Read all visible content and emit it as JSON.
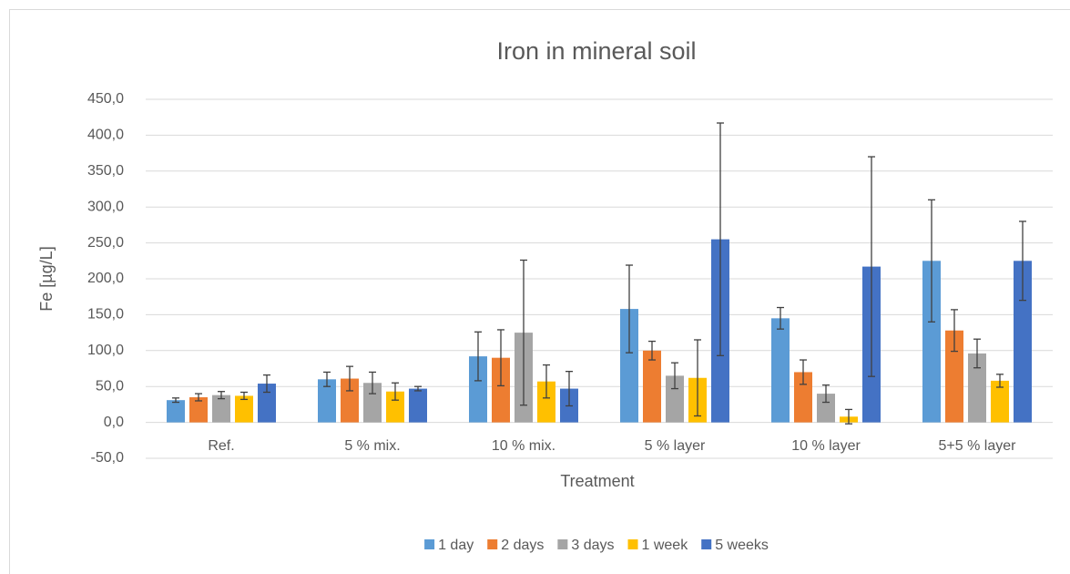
{
  "chart_data": {
    "type": "bar",
    "title": "Iron in mineral soil",
    "x_label": "Treatment",
    "y_label": "Fe [µg/L]",
    "categories": [
      "Ref.",
      "5 % mix.",
      "10 % mix.",
      "5 % layer",
      "10 % layer",
      "5+5 % layer"
    ],
    "series": [
      {
        "name": "1 day",
        "color": "#5b9bd5",
        "values": [
          31,
          60,
          92,
          158,
          145,
          225
        ],
        "errors": [
          3,
          10,
          34,
          61,
          15,
          85
        ]
      },
      {
        "name": "2 days",
        "color": "#ed7d31",
        "values": [
          35,
          61,
          90,
          100,
          70,
          128
        ],
        "errors": [
          5,
          17,
          39,
          13,
          17,
          29
        ]
      },
      {
        "name": "3 days",
        "color": "#a5a5a5",
        "values": [
          38,
          55,
          125,
          65,
          40,
          96
        ],
        "errors": [
          5,
          15,
          101,
          18,
          12,
          20
        ]
      },
      {
        "name": "1 week",
        "color": "#ffc000",
        "values": [
          37,
          43,
          57,
          62,
          8,
          58
        ],
        "errors": [
          5,
          12,
          23,
          53,
          10,
          9
        ]
      },
      {
        "name": "5 weeks",
        "color": "#4472c4",
        "values": [
          54,
          47,
          47,
          255,
          217,
          225
        ],
        "errors": [
          12,
          3,
          24,
          162,
          153,
          55
        ]
      }
    ],
    "ylim": [
      -50,
      450
    ],
    "yticks": [
      {
        "value": -50,
        "label": "-50,0"
      },
      {
        "value": 0,
        "label": "0,0"
      },
      {
        "value": 50,
        "label": "50,0"
      },
      {
        "value": 100,
        "label": "100,0"
      },
      {
        "value": 150,
        "label": "150,0"
      },
      {
        "value": 200,
        "label": "200,0"
      },
      {
        "value": 250,
        "label": "250,0"
      },
      {
        "value": 300,
        "label": "300,0"
      },
      {
        "value": 350,
        "label": "350,0"
      },
      {
        "value": 400,
        "label": "400,0"
      },
      {
        "value": 450,
        "label": "450,0"
      }
    ],
    "grid": true,
    "legend": "bottom"
  }
}
